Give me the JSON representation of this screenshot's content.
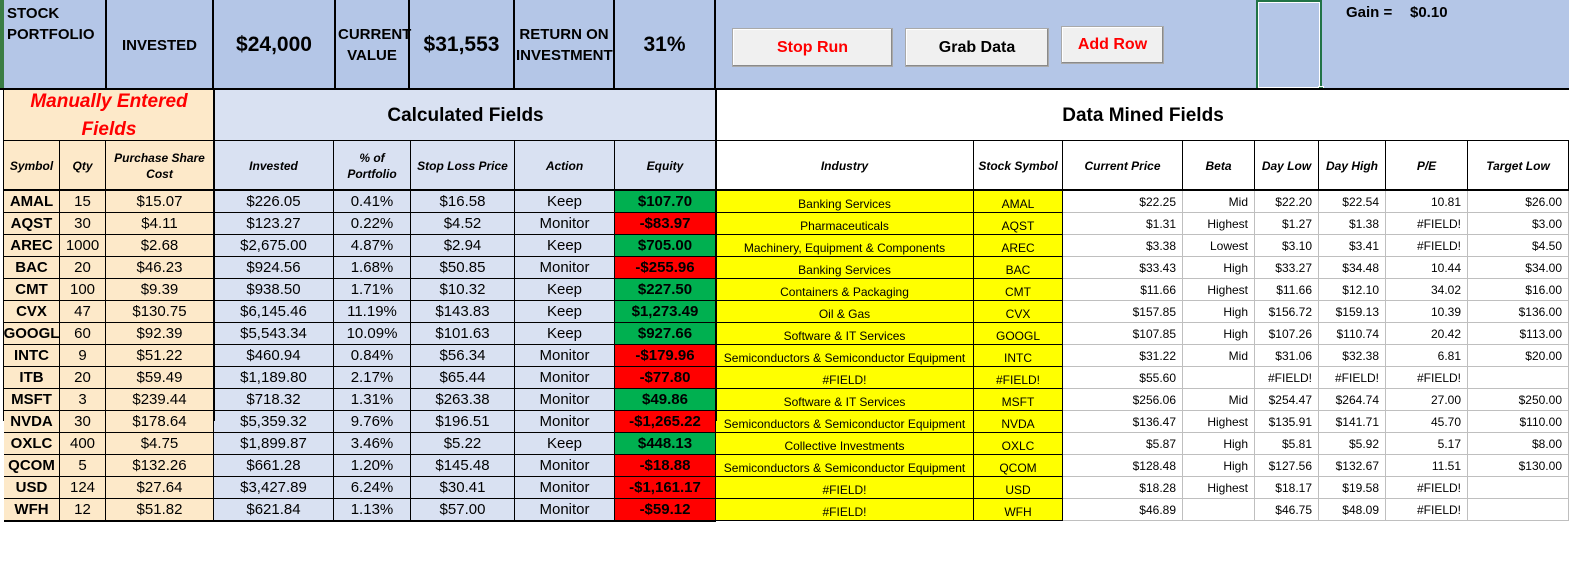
{
  "header": {
    "title": "STOCK PORTFOLIO",
    "invested_label": "INVESTED",
    "invested_value": "$24,000",
    "current_value_label": "CURRENT VALUE",
    "current_value": "$31,553",
    "roi_label": "RETURN ON INVESTMENT",
    "roi_value": "31%",
    "gain_label": "Gain =",
    "gain_value": "$0.10"
  },
  "buttons": {
    "stop_run": "Stop Run",
    "grab_data": "Grab Data",
    "add_row": "Add Row"
  },
  "sections": {
    "manual": "Manually Entered Fields",
    "calculated": "Calculated Fields",
    "mined": "Data Mined Fields"
  },
  "columns": [
    "Symbol",
    "Qty",
    "Purchase Share Cost",
    "Invested",
    "% of Portfolio",
    "Stop Loss Price",
    "Action",
    "Equity",
    "Industry",
    "Stock Symbol",
    "Current Price",
    "Beta",
    "Day Low",
    "Day High",
    "P/E",
    "Target Low"
  ],
  "colors": {
    "header_bg": "#b4c6e7",
    "manual_bg": "#fde9c9",
    "manual_title": "#ff0000",
    "calc_bg": "#d9e1f2",
    "equity_pos": "#00b050",
    "equity_neg": "#ff0000",
    "mined_bg": "#ffff00",
    "button_text_red": "#ff0000"
  },
  "rows": [
    {
      "symbol": "AMAL",
      "qty": "15",
      "cost": "$15.07",
      "invested": "$226.05",
      "pct": "0.41%",
      "stop": "$16.58",
      "action": "Keep",
      "equity": "$107.70",
      "equity_sign": "pos",
      "industry": "Banking Services",
      "stock_symbol": "AMAL",
      "price": "$22.25",
      "beta": "Mid",
      "low": "$22.20",
      "high": "$22.54",
      "pe": "10.81",
      "target": "$26.00"
    },
    {
      "symbol": "AQST",
      "qty": "30",
      "cost": "$4.11",
      "invested": "$123.27",
      "pct": "0.22%",
      "stop": "$4.52",
      "action": "Monitor",
      "equity": "-$83.97",
      "equity_sign": "neg",
      "industry": "Pharmaceuticals",
      "stock_symbol": "AQST",
      "price": "$1.31",
      "beta": "Highest",
      "low": "$1.27",
      "high": "$1.38",
      "pe": "#FIELD!",
      "target": "$3.00"
    },
    {
      "symbol": "AREC",
      "qty": "1000",
      "cost": "$2.68",
      "invested": "$2,675.00",
      "pct": "4.87%",
      "stop": "$2.94",
      "action": "Keep",
      "equity": "$705.00",
      "equity_sign": "pos",
      "industry": "Machinery, Equipment & Components",
      "stock_symbol": "AREC",
      "price": "$3.38",
      "beta": "Lowest",
      "low": "$3.10",
      "high": "$3.41",
      "pe": "#FIELD!",
      "target": "$4.50"
    },
    {
      "symbol": "BAC",
      "qty": "20",
      "cost": "$46.23",
      "invested": "$924.56",
      "pct": "1.68%",
      "stop": "$50.85",
      "action": "Monitor",
      "equity": "-$255.96",
      "equity_sign": "neg",
      "industry": "Banking Services",
      "stock_symbol": "BAC",
      "price": "$33.43",
      "beta": "High",
      "low": "$33.27",
      "high": "$34.48",
      "pe": "10.44",
      "target": "$34.00"
    },
    {
      "symbol": "CMT",
      "qty": "100",
      "cost": "$9.39",
      "invested": "$938.50",
      "pct": "1.71%",
      "stop": "$10.32",
      "action": "Keep",
      "equity": "$227.50",
      "equity_sign": "pos",
      "industry": "Containers & Packaging",
      "stock_symbol": "CMT",
      "price": "$11.66",
      "beta": "Highest",
      "low": "$11.66",
      "high": "$12.10",
      "pe": "34.02",
      "target": "$16.00"
    },
    {
      "symbol": "CVX",
      "qty": "47",
      "cost": "$130.75",
      "invested": "$6,145.46",
      "pct": "11.19%",
      "stop": "$143.83",
      "action": "Keep",
      "equity": "$1,273.49",
      "equity_sign": "pos",
      "industry": "Oil & Gas",
      "stock_symbol": "CVX",
      "price": "$157.85",
      "beta": "High",
      "low": "$156.72",
      "high": "$159.13",
      "pe": "10.39",
      "target": "$136.00"
    },
    {
      "symbol": "GOOGL",
      "qty": "60",
      "cost": "$92.39",
      "invested": "$5,543.34",
      "pct": "10.09%",
      "stop": "$101.63",
      "action": "Keep",
      "equity": "$927.66",
      "equity_sign": "pos",
      "industry": "Software & IT Services",
      "stock_symbol": "GOOGL",
      "price": "$107.85",
      "beta": "High",
      "low": "$107.26",
      "high": "$110.74",
      "pe": "20.42",
      "target": "$113.00"
    },
    {
      "symbol": "INTC",
      "qty": "9",
      "cost": "$51.22",
      "invested": "$460.94",
      "pct": "0.84%",
      "stop": "$56.34",
      "action": "Monitor",
      "equity": "-$179.96",
      "equity_sign": "neg",
      "industry": "Semiconductors & Semiconductor Equipment",
      "stock_symbol": "INTC",
      "price": "$31.22",
      "beta": "Mid",
      "low": "$31.06",
      "high": "$32.38",
      "pe": "6.81",
      "target": "$20.00"
    },
    {
      "symbol": "ITB",
      "qty": "20",
      "cost": "$59.49",
      "invested": "$1,189.80",
      "pct": "2.17%",
      "stop": "$65.44",
      "action": "Monitor",
      "equity": "-$77.80",
      "equity_sign": "neg",
      "industry": "#FIELD!",
      "stock_symbol": "#FIELD!",
      "price": "$55.60",
      "beta": "",
      "low": "#FIELD!",
      "high": "#FIELD!",
      "pe": "#FIELD!",
      "target": ""
    },
    {
      "symbol": "MSFT",
      "qty": "3",
      "cost": "$239.44",
      "invested": "$718.32",
      "pct": "1.31%",
      "stop": "$263.38",
      "action": "Monitor",
      "equity": "$49.86",
      "equity_sign": "pos",
      "industry": "Software & IT Services",
      "stock_symbol": "MSFT",
      "price": "$256.06",
      "beta": "Mid",
      "low": "$254.47",
      "high": "$264.74",
      "pe": "27.00",
      "target": "$250.00"
    },
    {
      "symbol": "NVDA",
      "qty": "30",
      "cost": "$178.64",
      "invested": "$5,359.32",
      "pct": "9.76%",
      "stop": "$196.51",
      "action": "Monitor",
      "equity": "-$1,265.22",
      "equity_sign": "neg",
      "industry": "Semiconductors & Semiconductor Equipment",
      "stock_symbol": "NVDA",
      "price": "$136.47",
      "beta": "Highest",
      "low": "$135.91",
      "high": "$141.71",
      "pe": "45.70",
      "target": "$110.00"
    },
    {
      "symbol": "OXLC",
      "qty": "400",
      "cost": "$4.75",
      "invested": "$1,899.87",
      "pct": "3.46%",
      "stop": "$5.22",
      "action": "Keep",
      "equity": "$448.13",
      "equity_sign": "pos",
      "industry": "Collective Investments",
      "stock_symbol": "OXLC",
      "price": "$5.87",
      "beta": "High",
      "low": "$5.81",
      "high": "$5.92",
      "pe": "5.17",
      "target": "$8.00"
    },
    {
      "symbol": "QCOM",
      "qty": "5",
      "cost": "$132.26",
      "invested": "$661.28",
      "pct": "1.20%",
      "stop": "$145.48",
      "action": "Monitor",
      "equity": "-$18.88",
      "equity_sign": "neg",
      "industry": "Semiconductors & Semiconductor Equipment",
      "stock_symbol": "QCOM",
      "price": "$128.48",
      "beta": "High",
      "low": "$127.56",
      "high": "$132.67",
      "pe": "11.51",
      "target": "$130.00"
    },
    {
      "symbol": "USD",
      "qty": "124",
      "cost": "$27.64",
      "invested": "$3,427.89",
      "pct": "6.24%",
      "stop": "$30.41",
      "action": "Monitor",
      "equity": "-$1,161.17",
      "equity_sign": "neg",
      "industry": "#FIELD!",
      "stock_symbol": "USD",
      "price": "$18.28",
      "beta": "Highest",
      "low": "$18.17",
      "high": "$19.58",
      "pe": "#FIELD!",
      "target": ""
    },
    {
      "symbol": "WFH",
      "qty": "12",
      "cost": "$51.82",
      "invested": "$621.84",
      "pct": "1.13%",
      "stop": "$57.00",
      "action": "Monitor",
      "equity": "-$59.12",
      "equity_sign": "neg",
      "industry": "#FIELD!",
      "stock_symbol": "WFH",
      "price": "$46.89",
      "beta": "",
      "low": "$46.75",
      "high": "$48.09",
      "pe": "#FIELD!",
      "target": ""
    }
  ]
}
